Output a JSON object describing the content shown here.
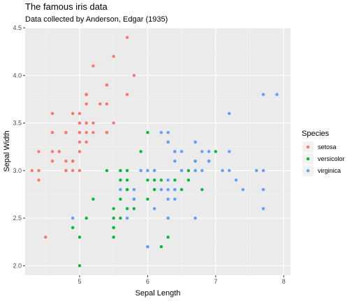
{
  "chart_data": {
    "type": "scatter",
    "title": "The famous iris data",
    "subtitle": "Data collected by Anderson, Edgar (1935)",
    "xlabel": "Sepal Length",
    "ylabel": "Sepal Width",
    "xlim": [
      4.2,
      8.1
    ],
    "ylim": [
      1.9,
      4.5
    ],
    "x_ticks": [
      5,
      6,
      7,
      8
    ],
    "y_ticks": [
      2.0,
      2.5,
      3.0,
      3.5,
      4.0,
      4.5
    ],
    "x_tick_labels": [
      "5",
      "6",
      "7",
      "8"
    ],
    "y_tick_labels": [
      "2.0",
      "2.5",
      "3.0",
      "3.5",
      "4.0",
      "4.5"
    ],
    "grid": true,
    "panel_background": "#ebebeb",
    "legend": {
      "title": "Species",
      "position": "right"
    },
    "series": [
      {
        "name": "setosa",
        "color": "#f8766d",
        "points": [
          [
            5.1,
            3.5
          ],
          [
            4.9,
            3.0
          ],
          [
            4.7,
            3.2
          ],
          [
            4.6,
            3.1
          ],
          [
            5.0,
            3.6
          ],
          [
            5.4,
            3.9
          ],
          [
            4.6,
            3.4
          ],
          [
            5.0,
            3.4
          ],
          [
            4.4,
            2.9
          ],
          [
            4.9,
            3.1
          ],
          [
            5.4,
            3.7
          ],
          [
            4.8,
            3.4
          ],
          [
            4.8,
            3.0
          ],
          [
            4.3,
            3.0
          ],
          [
            5.8,
            4.0
          ],
          [
            5.7,
            4.4
          ],
          [
            5.4,
            3.9
          ],
          [
            5.1,
            3.5
          ],
          [
            5.7,
            3.8
          ],
          [
            5.1,
            3.8
          ],
          [
            5.4,
            3.4
          ],
          [
            5.1,
            3.7
          ],
          [
            4.6,
            3.6
          ],
          [
            5.1,
            3.3
          ],
          [
            4.8,
            3.4
          ],
          [
            5.0,
            3.0
          ],
          [
            5.0,
            3.4
          ],
          [
            5.2,
            3.5
          ],
          [
            5.2,
            3.4
          ],
          [
            4.7,
            3.2
          ],
          [
            4.8,
            3.1
          ],
          [
            5.4,
            3.4
          ],
          [
            5.2,
            4.1
          ],
          [
            5.5,
            4.2
          ],
          [
            4.9,
            3.1
          ],
          [
            5.0,
            3.2
          ],
          [
            5.5,
            3.5
          ],
          [
            4.9,
            3.6
          ],
          [
            4.4,
            3.0
          ],
          [
            5.1,
            3.4
          ],
          [
            5.0,
            3.5
          ],
          [
            4.5,
            2.3
          ],
          [
            4.4,
            3.2
          ],
          [
            5.0,
            3.5
          ],
          [
            5.1,
            3.8
          ],
          [
            4.8,
            3.0
          ],
          [
            5.1,
            3.8
          ],
          [
            4.6,
            3.2
          ],
          [
            5.3,
            3.7
          ],
          [
            5.0,
            3.3
          ]
        ]
      },
      {
        "name": "versicolor",
        "color": "#00ba38",
        "points": [
          [
            7.0,
            3.2
          ],
          [
            6.4,
            3.2
          ],
          [
            6.9,
            3.1
          ],
          [
            5.5,
            2.3
          ],
          [
            6.5,
            2.8
          ],
          [
            5.7,
            2.8
          ],
          [
            6.3,
            3.3
          ],
          [
            4.9,
            2.4
          ],
          [
            6.6,
            2.9
          ],
          [
            5.2,
            2.7
          ],
          [
            5.0,
            2.0
          ],
          [
            5.9,
            3.0
          ],
          [
            6.0,
            2.2
          ],
          [
            6.1,
            2.9
          ],
          [
            5.6,
            2.9
          ],
          [
            6.7,
            3.1
          ],
          [
            5.6,
            3.0
          ],
          [
            5.8,
            2.7
          ],
          [
            6.2,
            2.2
          ],
          [
            5.6,
            2.5
          ],
          [
            5.9,
            3.2
          ],
          [
            6.1,
            2.8
          ],
          [
            6.3,
            2.5
          ],
          [
            6.1,
            2.8
          ],
          [
            6.4,
            2.9
          ],
          [
            6.6,
            3.0
          ],
          [
            6.8,
            2.8
          ],
          [
            6.7,
            3.0
          ],
          [
            6.0,
            2.9
          ],
          [
            5.7,
            2.6
          ],
          [
            5.5,
            2.4
          ],
          [
            5.5,
            2.4
          ],
          [
            5.8,
            2.7
          ],
          [
            6.0,
            2.7
          ],
          [
            5.4,
            3.0
          ],
          [
            6.0,
            3.4
          ],
          [
            6.7,
            3.1
          ],
          [
            6.3,
            2.3
          ],
          [
            5.6,
            3.0
          ],
          [
            5.5,
            2.5
          ],
          [
            5.5,
            2.6
          ],
          [
            6.1,
            3.0
          ],
          [
            5.8,
            2.6
          ],
          [
            5.0,
            2.3
          ],
          [
            5.6,
            2.7
          ],
          [
            5.7,
            3.0
          ],
          [
            5.7,
            2.9
          ],
          [
            6.2,
            2.9
          ],
          [
            5.1,
            2.5
          ],
          [
            5.7,
            2.8
          ]
        ]
      },
      {
        "name": "virginica",
        "color": "#619cff",
        "points": [
          [
            6.3,
            3.3
          ],
          [
            5.8,
            2.7
          ],
          [
            7.1,
            3.0
          ],
          [
            6.3,
            2.9
          ],
          [
            6.5,
            3.0
          ],
          [
            7.6,
            3.0
          ],
          [
            4.9,
            2.5
          ],
          [
            7.3,
            2.9
          ],
          [
            6.7,
            2.5
          ],
          [
            7.2,
            3.6
          ],
          [
            6.5,
            3.2
          ],
          [
            6.4,
            2.7
          ],
          [
            6.8,
            3.0
          ],
          [
            5.7,
            2.5
          ],
          [
            5.8,
            2.8
          ],
          [
            6.4,
            3.2
          ],
          [
            6.5,
            3.0
          ],
          [
            7.7,
            3.8
          ],
          [
            7.7,
            2.6
          ],
          [
            6.0,
            2.2
          ],
          [
            6.9,
            3.2
          ],
          [
            5.6,
            2.8
          ],
          [
            7.7,
            2.8
          ],
          [
            6.3,
            2.7
          ],
          [
            6.7,
            3.3
          ],
          [
            7.2,
            3.2
          ],
          [
            6.2,
            2.8
          ],
          [
            6.1,
            3.0
          ],
          [
            6.4,
            2.8
          ],
          [
            7.2,
            3.0
          ],
          [
            7.4,
            2.8
          ],
          [
            7.9,
            3.8
          ],
          [
            6.4,
            2.8
          ],
          [
            6.3,
            2.8
          ],
          [
            6.1,
            2.6
          ],
          [
            7.7,
            3.0
          ],
          [
            6.3,
            3.4
          ],
          [
            6.4,
            3.1
          ],
          [
            6.0,
            3.0
          ],
          [
            6.9,
            3.1
          ],
          [
            6.7,
            3.1
          ],
          [
            6.9,
            3.1
          ],
          [
            5.8,
            2.7
          ],
          [
            6.8,
            3.2
          ],
          [
            6.7,
            3.3
          ],
          [
            6.7,
            3.0
          ],
          [
            6.3,
            2.5
          ],
          [
            6.5,
            3.0
          ],
          [
            6.2,
            3.4
          ],
          [
            5.9,
            3.0
          ]
        ]
      }
    ]
  }
}
